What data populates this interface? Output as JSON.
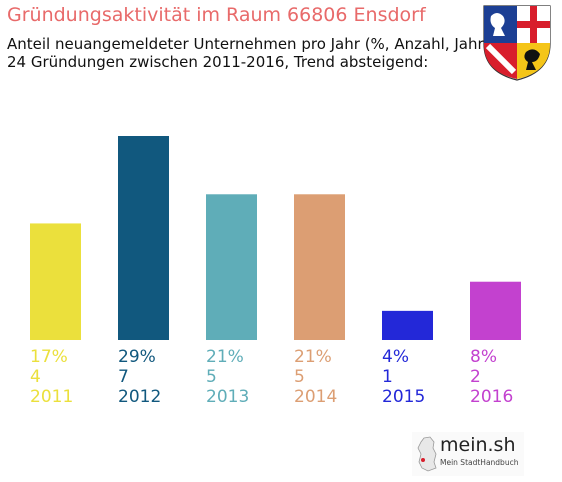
{
  "title": "Gründungsaktivität im Raum 66806 Ensdorf",
  "subtitle_line1": "Anteil neuangemeldeter Unternehmen pro Jahr (%, Anzahl, Jahr)",
  "subtitle_line2": "24 Gründungen zwischen 2011-2016, Trend absteigend:",
  "logo": {
    "name": "mein.sh",
    "tagline": "Mein StadtHandbuch"
  },
  "colors": {
    "title": "#e86a6a"
  },
  "chart_data": {
    "type": "bar",
    "categories": [
      "2011",
      "2012",
      "2013",
      "2014",
      "2015",
      "2016"
    ],
    "values": [
      4,
      7,
      5,
      5,
      1,
      2
    ],
    "percent_labels": [
      "17%",
      "29%",
      "21%",
      "21%",
      "4%",
      "8%"
    ],
    "count_labels": [
      "4",
      "7",
      "5",
      "5",
      "1",
      "2"
    ],
    "colors": [
      "#ebe03c",
      "#11587e",
      "#5fadb8",
      "#dc9e73",
      "#2328d8",
      "#c341cf"
    ],
    "ylim": [
      0,
      7
    ],
    "grid": false
  }
}
